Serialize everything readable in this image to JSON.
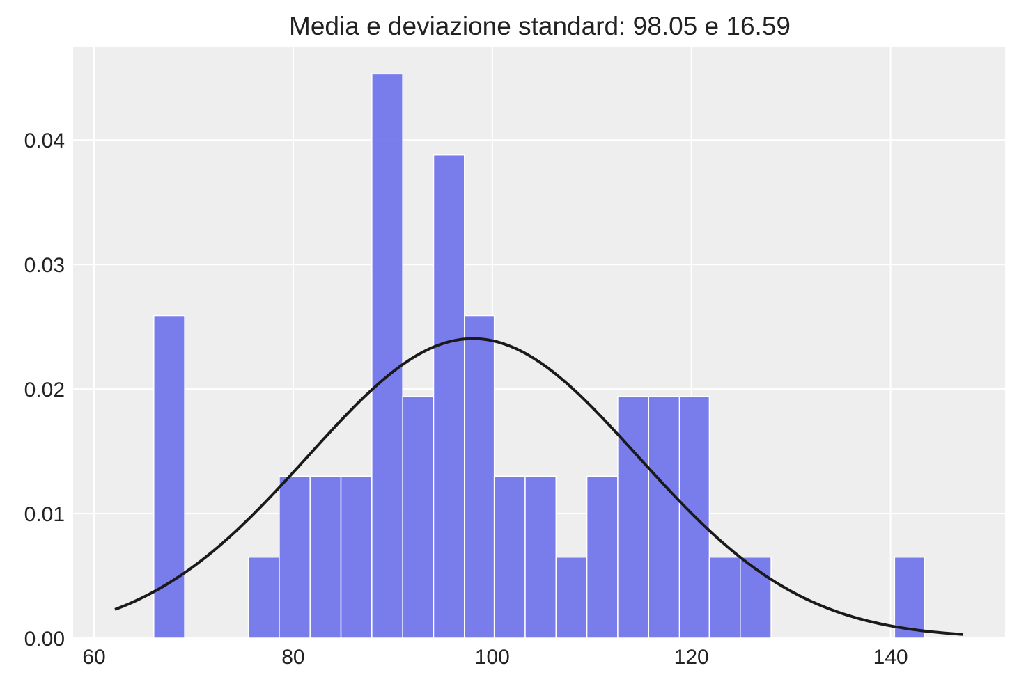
{
  "chart_data": {
    "type": "bar",
    "title": "Media e deviazione standard: 98.05 e 16.59",
    "xlabel": "",
    "ylabel": "",
    "xlim": [
      57.9,
      151.5
    ],
    "ylim": [
      0,
      0.0475
    ],
    "x_ticks": [
      {
        "value": 60,
        "label": "60"
      },
      {
        "value": 80,
        "label": "80"
      },
      {
        "value": 100,
        "label": "100"
      },
      {
        "value": 120,
        "label": "120"
      },
      {
        "value": 140,
        "label": "140"
      }
    ],
    "y_ticks": [
      {
        "value": 0.0,
        "label": "0.00"
      },
      {
        "value": 0.01,
        "label": "0.01"
      },
      {
        "value": 0.02,
        "label": "0.02"
      },
      {
        "value": 0.03,
        "label": "0.03"
      },
      {
        "value": 0.04,
        "label": "0.04"
      }
    ],
    "grid": true,
    "bins": [
      {
        "x0": 66.0,
        "x1": 69.1,
        "density": 0.0259
      },
      {
        "x0": 75.5,
        "x1": 78.6,
        "density": 0.0065
      },
      {
        "x0": 78.6,
        "x1": 81.7,
        "density": 0.013
      },
      {
        "x0": 81.7,
        "x1": 84.8,
        "density": 0.013
      },
      {
        "x0": 84.8,
        "x1": 87.9,
        "density": 0.013
      },
      {
        "x0": 87.9,
        "x1": 91.0,
        "density": 0.0453
      },
      {
        "x0": 91.0,
        "x1": 94.1,
        "density": 0.0194
      },
      {
        "x0": 94.1,
        "x1": 97.2,
        "density": 0.0388
      },
      {
        "x0": 97.2,
        "x1": 100.2,
        "density": 0.0259
      },
      {
        "x0": 100.2,
        "x1": 103.3,
        "density": 0.013
      },
      {
        "x0": 103.3,
        "x1": 106.4,
        "density": 0.013
      },
      {
        "x0": 106.4,
        "x1": 109.5,
        "density": 0.0065
      },
      {
        "x0": 109.5,
        "x1": 112.6,
        "density": 0.013
      },
      {
        "x0": 112.6,
        "x1": 115.7,
        "density": 0.0194
      },
      {
        "x0": 115.7,
        "x1": 118.8,
        "density": 0.0194
      },
      {
        "x0": 118.8,
        "x1": 121.8,
        "density": 0.0194
      },
      {
        "x0": 121.8,
        "x1": 124.9,
        "density": 0.0065
      },
      {
        "x0": 124.9,
        "x1": 128.0,
        "density": 0.0065
      },
      {
        "x0": 140.4,
        "x1": 143.4,
        "density": 0.0065
      }
    ],
    "normal_curve": {
      "mean": 98.05,
      "sd": 16.59,
      "x_range": [
        62.1,
        147.3
      ]
    },
    "colors": {
      "bar_fill": "#6b70eb",
      "bar_edge": "#ffffff",
      "curve": "#1a1a1a",
      "plot_background": "#eeeeee",
      "grid": "#ffffff"
    }
  }
}
